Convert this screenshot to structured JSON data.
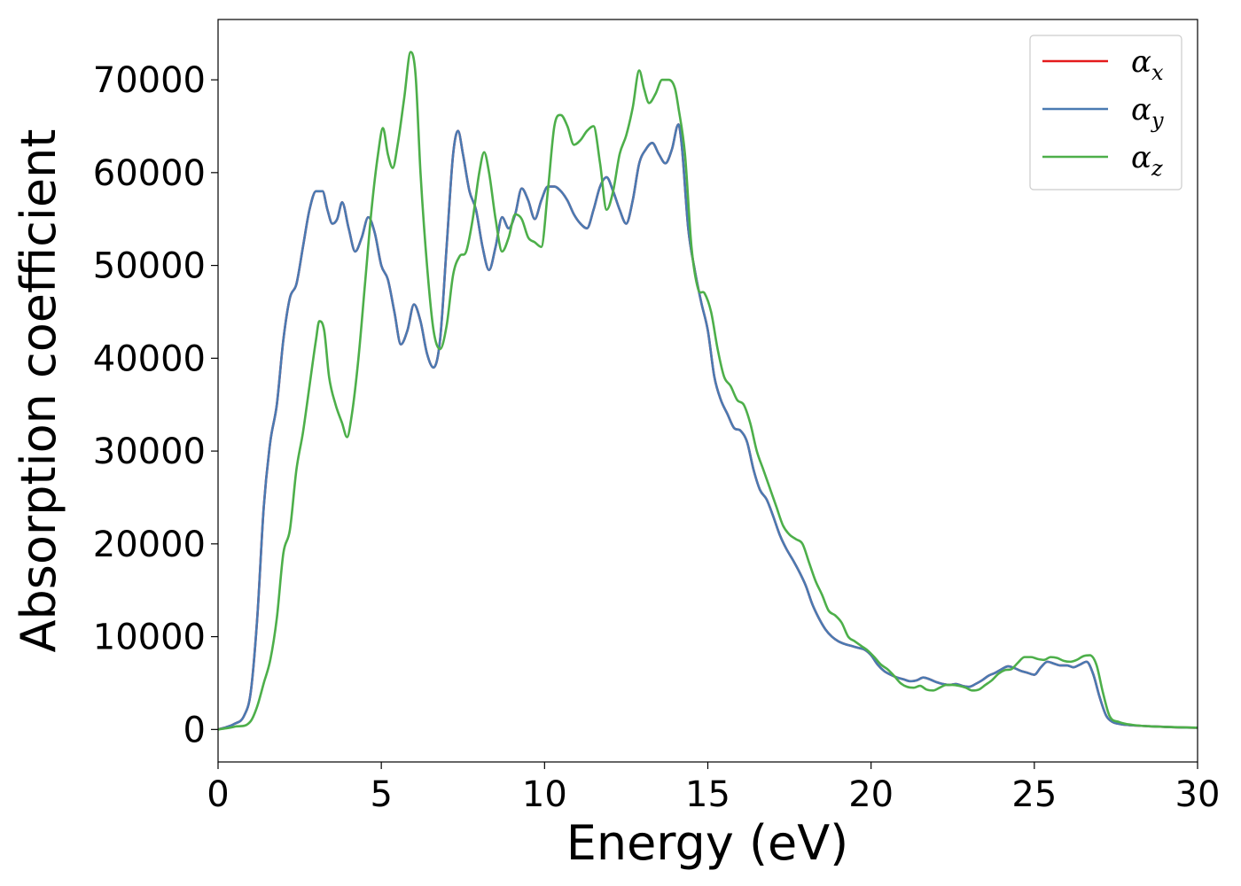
{
  "chart_data": {
    "type": "line",
    "xlabel": "Energy (eV)",
    "ylabel": "Absorption coefficient",
    "xlim": [
      0,
      30
    ],
    "ylim": [
      -3500,
      76500
    ],
    "x_ticks": [
      0,
      5,
      10,
      15,
      20,
      25,
      30
    ],
    "y_ticks": [
      0,
      10000,
      20000,
      30000,
      40000,
      50000,
      60000,
      70000
    ],
    "grid": false,
    "legend_position": "top-right",
    "series": [
      {
        "name": "αx",
        "symbol": "α",
        "subscript": "x",
        "color": "#e41a1c",
        "x": [
          0,
          0.5,
          0.8,
          1.0,
          1.2,
          1.4,
          1.6,
          1.8,
          2.0,
          2.2,
          2.4,
          2.6,
          2.8,
          3.0,
          3.2,
          3.35,
          3.5,
          3.65,
          3.8,
          4.0,
          4.2,
          4.4,
          4.6,
          4.8,
          5.0,
          5.2,
          5.4,
          5.6,
          5.8,
          6.0,
          6.2,
          6.4,
          6.6,
          6.8,
          7.0,
          7.2,
          7.35,
          7.5,
          7.7,
          7.9,
          8.1,
          8.3,
          8.5,
          8.7,
          8.9,
          9.1,
          9.3,
          9.5,
          9.7,
          9.9,
          10.1,
          10.3,
          10.5,
          10.7,
          10.9,
          11.1,
          11.3,
          11.5,
          11.7,
          11.9,
          12.1,
          12.3,
          12.5,
          12.7,
          12.9,
          13.1,
          13.3,
          13.5,
          13.7,
          13.9,
          14.1,
          14.2,
          14.4,
          14.6,
          14.8,
          15.0,
          15.2,
          15.4,
          15.6,
          15.8,
          16.0,
          16.2,
          16.4,
          16.6,
          16.8,
          17.0,
          17.2,
          17.4,
          17.6,
          17.8,
          18.0,
          18.2,
          18.4,
          18.6,
          18.8,
          19.0,
          19.2,
          19.4,
          19.6,
          19.8,
          20.0,
          20.2,
          20.4,
          20.6,
          20.8,
          21.0,
          21.2,
          21.4,
          21.6,
          21.8,
          22.0,
          22.2,
          22.4,
          22.6,
          22.8,
          23.0,
          23.2,
          23.4,
          23.6,
          23.8,
          24.0,
          24.2,
          24.4,
          24.6,
          24.8,
          25.0,
          25.2,
          25.4,
          25.6,
          25.8,
          26.0,
          26.2,
          26.4,
          26.6,
          26.8,
          27.0,
          27.2,
          27.4,
          27.6,
          28.0,
          28.5,
          29.0,
          29.5,
          30.0
        ],
        "y": [
          0,
          600,
          1500,
          4000,
          12000,
          24000,
          31000,
          35000,
          42000,
          46500,
          48000,
          52000,
          56000,
          58000,
          58000,
          56000,
          54500,
          55000,
          56800,
          54000,
          51500,
          53000,
          55200,
          53500,
          50000,
          48500,
          45000,
          41500,
          43000,
          45800,
          44000,
          40500,
          39000,
          42000,
          52000,
          62000,
          64500,
          62000,
          58000,
          56000,
          52000,
          49500,
          52000,
          55200,
          54000,
          55500,
          58300,
          57000,
          55000,
          57000,
          58500,
          58500,
          58000,
          57000,
          55500,
          54500,
          54000,
          56000,
          58500,
          59500,
          58000,
          56000,
          54500,
          57000,
          61000,
          62500,
          63200,
          62000,
          61000,
          62500,
          65200,
          63000,
          54000,
          49500,
          46000,
          43000,
          38000,
          35500,
          34000,
          32500,
          32200,
          31000,
          28000,
          25800,
          24800,
          23000,
          21000,
          19500,
          18300,
          17000,
          15500,
          13500,
          12000,
          10800,
          10000,
          9500,
          9200,
          9000,
          8800,
          8600,
          8000,
          7000,
          6300,
          5900,
          5600,
          5400,
          5200,
          5300,
          5600,
          5400,
          5100,
          4900,
          4800,
          4900,
          4700,
          4600,
          4900,
          5300,
          5800,
          6100,
          6500,
          6800,
          6600,
          6300,
          6100,
          5900,
          6700,
          7300,
          7100,
          6900,
          6900,
          6700,
          7000,
          7300,
          6000,
          3500,
          1500,
          800,
          600,
          450,
          350,
          280,
          220,
          180
        ]
      },
      {
        "name": "αy",
        "symbol": "α",
        "subscript": "y",
        "color": "#4a7ab2",
        "x": [
          0,
          0.5,
          0.8,
          1.0,
          1.2,
          1.4,
          1.6,
          1.8,
          2.0,
          2.2,
          2.4,
          2.6,
          2.8,
          3.0,
          3.2,
          3.35,
          3.5,
          3.65,
          3.8,
          4.0,
          4.2,
          4.4,
          4.6,
          4.8,
          5.0,
          5.2,
          5.4,
          5.6,
          5.8,
          6.0,
          6.2,
          6.4,
          6.6,
          6.8,
          7.0,
          7.2,
          7.35,
          7.5,
          7.7,
          7.9,
          8.1,
          8.3,
          8.5,
          8.7,
          8.9,
          9.1,
          9.3,
          9.5,
          9.7,
          9.9,
          10.1,
          10.3,
          10.5,
          10.7,
          10.9,
          11.1,
          11.3,
          11.5,
          11.7,
          11.9,
          12.1,
          12.3,
          12.5,
          12.7,
          12.9,
          13.1,
          13.3,
          13.5,
          13.7,
          13.9,
          14.1,
          14.2,
          14.4,
          14.6,
          14.8,
          15.0,
          15.2,
          15.4,
          15.6,
          15.8,
          16.0,
          16.2,
          16.4,
          16.6,
          16.8,
          17.0,
          17.2,
          17.4,
          17.6,
          17.8,
          18.0,
          18.2,
          18.4,
          18.6,
          18.8,
          19.0,
          19.2,
          19.4,
          19.6,
          19.8,
          20.0,
          20.2,
          20.4,
          20.6,
          20.8,
          21.0,
          21.2,
          21.4,
          21.6,
          21.8,
          22.0,
          22.2,
          22.4,
          22.6,
          22.8,
          23.0,
          23.2,
          23.4,
          23.6,
          23.8,
          24.0,
          24.2,
          24.4,
          24.6,
          24.8,
          25.0,
          25.2,
          25.4,
          25.6,
          25.8,
          26.0,
          26.2,
          26.4,
          26.6,
          26.8,
          27.0,
          27.2,
          27.4,
          27.6,
          28.0,
          28.5,
          29.0,
          29.5,
          30.0
        ],
        "y": [
          0,
          600,
          1500,
          4000,
          12000,
          24000,
          31000,
          35000,
          42000,
          46500,
          48000,
          52000,
          56000,
          58000,
          58000,
          56000,
          54500,
          55000,
          56800,
          54000,
          51500,
          53000,
          55200,
          53500,
          50000,
          48500,
          45000,
          41500,
          43000,
          45800,
          44000,
          40500,
          39000,
          42000,
          52000,
          62000,
          64500,
          62000,
          58000,
          56000,
          52000,
          49500,
          52000,
          55200,
          54000,
          55500,
          58300,
          57000,
          55000,
          57000,
          58500,
          58500,
          58000,
          57000,
          55500,
          54500,
          54000,
          56000,
          58500,
          59500,
          58000,
          56000,
          54500,
          57000,
          61000,
          62500,
          63200,
          62000,
          61000,
          62500,
          65200,
          63000,
          54000,
          49500,
          46000,
          43000,
          38000,
          35500,
          34000,
          32500,
          32200,
          31000,
          28000,
          25800,
          24800,
          23000,
          21000,
          19500,
          18300,
          17000,
          15500,
          13500,
          12000,
          10800,
          10000,
          9500,
          9200,
          9000,
          8800,
          8600,
          8000,
          7000,
          6300,
          5900,
          5600,
          5400,
          5200,
          5300,
          5600,
          5400,
          5100,
          4900,
          4800,
          4900,
          4700,
          4600,
          4900,
          5300,
          5800,
          6100,
          6500,
          6800,
          6600,
          6300,
          6100,
          5900,
          6700,
          7300,
          7100,
          6900,
          6900,
          6700,
          7000,
          7300,
          6000,
          3500,
          1500,
          800,
          600,
          450,
          350,
          280,
          220,
          180
        ]
      },
      {
        "name": "αz",
        "symbol": "α",
        "subscript": "z",
        "color": "#4daf4a",
        "x": [
          0,
          0.5,
          1.0,
          1.2,
          1.4,
          1.6,
          1.8,
          2.0,
          2.2,
          2.4,
          2.6,
          2.8,
          3.0,
          3.1,
          3.25,
          3.4,
          3.6,
          3.8,
          3.95,
          4.1,
          4.3,
          4.5,
          4.7,
          4.9,
          5.05,
          5.2,
          5.35,
          5.5,
          5.7,
          5.9,
          6.05,
          6.2,
          6.4,
          6.6,
          6.8,
          7.0,
          7.2,
          7.4,
          7.6,
          7.8,
          8.0,
          8.15,
          8.3,
          8.5,
          8.7,
          8.9,
          9.1,
          9.3,
          9.5,
          9.7,
          9.9,
          10.1,
          10.3,
          10.5,
          10.7,
          10.9,
          11.1,
          11.3,
          11.5,
          11.7,
          11.9,
          12.1,
          12.3,
          12.5,
          12.7,
          12.9,
          13.05,
          13.2,
          13.4,
          13.6,
          13.8,
          14.0,
          14.1,
          14.3,
          14.5,
          14.7,
          14.9,
          15.1,
          15.3,
          15.5,
          15.7,
          15.9,
          16.1,
          16.3,
          16.5,
          16.7,
          16.9,
          17.1,
          17.3,
          17.5,
          17.7,
          17.9,
          18.1,
          18.3,
          18.5,
          18.7,
          18.9,
          19.1,
          19.3,
          19.5,
          19.7,
          19.9,
          20.1,
          20.3,
          20.5,
          20.7,
          20.9,
          21.1,
          21.3,
          21.5,
          21.7,
          21.9,
          22.1,
          22.3,
          22.5,
          22.7,
          22.9,
          23.1,
          23.3,
          23.5,
          23.7,
          23.9,
          24.1,
          24.3,
          24.5,
          24.7,
          24.9,
          25.1,
          25.3,
          25.5,
          25.7,
          25.9,
          26.1,
          26.3,
          26.5,
          26.7,
          26.9,
          27.1,
          27.3,
          27.6,
          28.0,
          28.5,
          29.0,
          29.5,
          30.0
        ],
        "y": [
          0,
          300,
          900,
          2500,
          5000,
          7500,
          12000,
          19000,
          21500,
          28000,
          32000,
          37000,
          42000,
          44000,
          43000,
          38000,
          35000,
          33000,
          31500,
          34000,
          40000,
          48000,
          56000,
          62000,
          64800,
          62000,
          60500,
          63000,
          68000,
          73000,
          70500,
          60000,
          50000,
          43000,
          41000,
          43500,
          49000,
          51000,
          51500,
          55000,
          60000,
          62200,
          60000,
          55000,
          51500,
          53000,
          55500,
          55000,
          53000,
          52500,
          52000,
          58000,
          65000,
          66200,
          65000,
          63000,
          63500,
          64500,
          65000,
          61000,
          56000,
          58000,
          62000,
          64000,
          67000,
          71000,
          69000,
          67500,
          68500,
          70000,
          70000,
          69000,
          67000,
          62000,
          52000,
          47500,
          47000,
          45000,
          41000,
          38000,
          37000,
          35500,
          35000,
          33000,
          30000,
          28000,
          26000,
          24000,
          22000,
          21000,
          20500,
          20000,
          18000,
          16000,
          14500,
          12800,
          12300,
          11500,
          10000,
          9500,
          9000,
          8500,
          7800,
          7000,
          6500,
          5800,
          5000,
          4600,
          4500,
          4700,
          4300,
          4200,
          4500,
          4800,
          4800,
          4700,
          4500,
          4200,
          4300,
          4800,
          5300,
          6000,
          6400,
          6500,
          7200,
          7800,
          7800,
          7600,
          7500,
          7800,
          7700,
          7400,
          7300,
          7500,
          7900,
          8000,
          7000,
          4000,
          1500,
          800,
          500,
          350,
          280,
          230,
          200
        ]
      }
    ]
  }
}
